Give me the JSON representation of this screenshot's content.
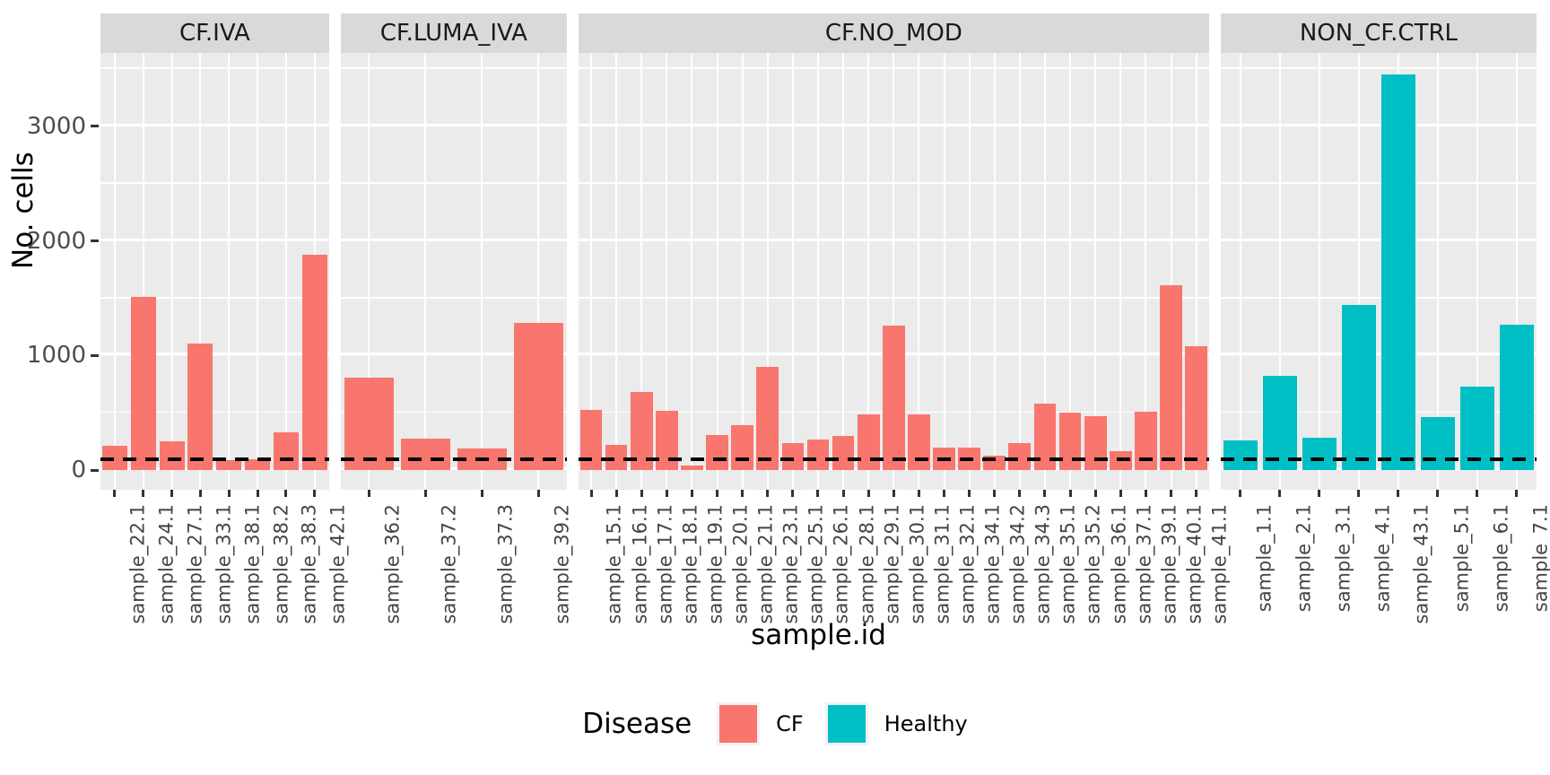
{
  "colors": {
    "cf": "#F8766D",
    "healthy": "#00BFC4",
    "panel_bg": "#EBEBEB",
    "strip_bg": "#D9D9D9",
    "grid": "#FFFFFF",
    "tick_text": "#4D4D4D",
    "dashed_line": "#000000"
  },
  "chart_data": {
    "type": "bar",
    "title": "",
    "xlabel": "sample.id",
    "ylabel": "No. cells",
    "ylim": [
      -170,
      3640
    ],
    "grid": "on",
    "y_axis": {
      "ticks": [
        0,
        1000,
        2000,
        3000
      ],
      "minor": [
        500,
        1500,
        2500,
        3500
      ]
    },
    "hline": {
      "value": 100,
      "style": "dashed",
      "color": "#000000"
    },
    "legend": {
      "title": "Disease",
      "position": "bottom",
      "items": [
        {
          "label": "CF",
          "color": "#F8766D"
        },
        {
          "label": "Healthy",
          "color": "#00BFC4"
        }
      ]
    },
    "facets": [
      {
        "label": "CF.IVA",
        "disease": "CF",
        "samples": [
          {
            "id": "sample_22.1",
            "value": 210
          },
          {
            "id": "sample_24.1",
            "value": 1510
          },
          {
            "id": "sample_27.1",
            "value": 250
          },
          {
            "id": "sample_33.1",
            "value": 1105
          },
          {
            "id": "sample_38.1",
            "value": 85
          },
          {
            "id": "sample_38.2",
            "value": 100
          },
          {
            "id": "sample_38.3",
            "value": 330
          },
          {
            "id": "sample_42.1",
            "value": 1880
          }
        ]
      },
      {
        "label": "CF.LUMA_IVA",
        "disease": "CF",
        "samples": [
          {
            "id": "sample_36.2",
            "value": 810
          },
          {
            "id": "sample_37.2",
            "value": 280
          },
          {
            "id": "sample_37.3",
            "value": 190
          },
          {
            "id": "sample_39.2",
            "value": 1285
          }
        ]
      },
      {
        "label": "CF.NO_MOD",
        "disease": "CF",
        "samples": [
          {
            "id": "sample_15.1",
            "value": 530
          },
          {
            "id": "sample_16.1",
            "value": 220
          },
          {
            "id": "sample_17.1",
            "value": 680
          },
          {
            "id": "sample_18.1",
            "value": 520
          },
          {
            "id": "sample_19.1",
            "value": 40
          },
          {
            "id": "sample_20.1",
            "value": 310
          },
          {
            "id": "sample_21.1",
            "value": 390
          },
          {
            "id": "sample_23.1",
            "value": 900
          },
          {
            "id": "sample_25.1",
            "value": 235
          },
          {
            "id": "sample_26.1",
            "value": 265
          },
          {
            "id": "sample_28.1",
            "value": 300
          },
          {
            "id": "sample_29.1",
            "value": 490
          },
          {
            "id": "sample_30.1",
            "value": 1260
          },
          {
            "id": "sample_31.1",
            "value": 490
          },
          {
            "id": "sample_32.1",
            "value": 200
          },
          {
            "id": "sample_34.1",
            "value": 195
          },
          {
            "id": "sample_34.2",
            "value": 125
          },
          {
            "id": "sample_34.3",
            "value": 240
          },
          {
            "id": "sample_35.1",
            "value": 585
          },
          {
            "id": "sample_35.2",
            "value": 500
          },
          {
            "id": "sample_36.1",
            "value": 470
          },
          {
            "id": "sample_37.1",
            "value": 170
          },
          {
            "id": "sample_39.1",
            "value": 510
          },
          {
            "id": "sample_40.1",
            "value": 1615
          },
          {
            "id": "sample_41.1",
            "value": 1085
          }
        ]
      },
      {
        "label": "NON_CF.CTRL",
        "disease": "Healthy",
        "samples": [
          {
            "id": "sample_1.1",
            "value": 260
          },
          {
            "id": "sample_2.1",
            "value": 825
          },
          {
            "id": "sample_3.1",
            "value": 285
          },
          {
            "id": "sample_4.1",
            "value": 1440
          },
          {
            "id": "sample_43.1",
            "value": 3450
          },
          {
            "id": "sample_5.1",
            "value": 460
          },
          {
            "id": "sample_6.1",
            "value": 730
          },
          {
            "id": "sample_7.1",
            "value": 1270
          }
        ]
      }
    ]
  }
}
